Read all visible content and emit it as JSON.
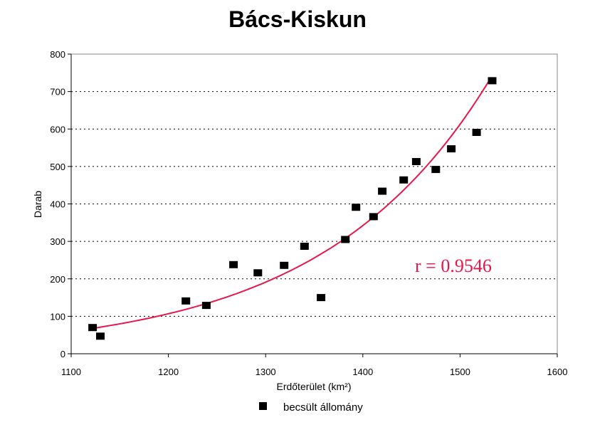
{
  "chart_data": {
    "type": "scatter",
    "title": "Bács-Kiskun",
    "xlabel": "Erdőterület (km²)",
    "ylabel": "Darab",
    "xlim": [
      1100,
      1600
    ],
    "ylim": [
      0,
      800
    ],
    "xticks": [
      1100,
      1200,
      1300,
      1400,
      1500,
      1600
    ],
    "yticks": [
      0,
      100,
      200,
      300,
      400,
      500,
      600,
      700,
      800
    ],
    "grid": "horizontal-dotted",
    "legend_position": "bottom",
    "series": [
      {
        "name": "becsült állomány",
        "marker": "square",
        "color": "#000000",
        "points": [
          {
            "x": 1122,
            "y": 70
          },
          {
            "x": 1130,
            "y": 47
          },
          {
            "x": 1218,
            "y": 141
          },
          {
            "x": 1239,
            "y": 129
          },
          {
            "x": 1267,
            "y": 238
          },
          {
            "x": 1292,
            "y": 216
          },
          {
            "x": 1319,
            "y": 236
          },
          {
            "x": 1340,
            "y": 287
          },
          {
            "x": 1357,
            "y": 150
          },
          {
            "x": 1382,
            "y": 305
          },
          {
            "x": 1393,
            "y": 391
          },
          {
            "x": 1411,
            "y": 366
          },
          {
            "x": 1420,
            "y": 434
          },
          {
            "x": 1442,
            "y": 464
          },
          {
            "x": 1455,
            "y": 513
          },
          {
            "x": 1475,
            "y": 492
          },
          {
            "x": 1491,
            "y": 547
          },
          {
            "x": 1517,
            "y": 591
          },
          {
            "x": 1533,
            "y": 729
          }
        ]
      }
    ],
    "trendline": {
      "type": "exponential",
      "color": "#e8174a",
      "x_range": [
        1120,
        1532
      ],
      "y_start": 67,
      "y_end": 738
    },
    "annotation": {
      "text": "r = 0.9546",
      "color": "#e8174a",
      "x": 1410,
      "y": 230
    }
  }
}
